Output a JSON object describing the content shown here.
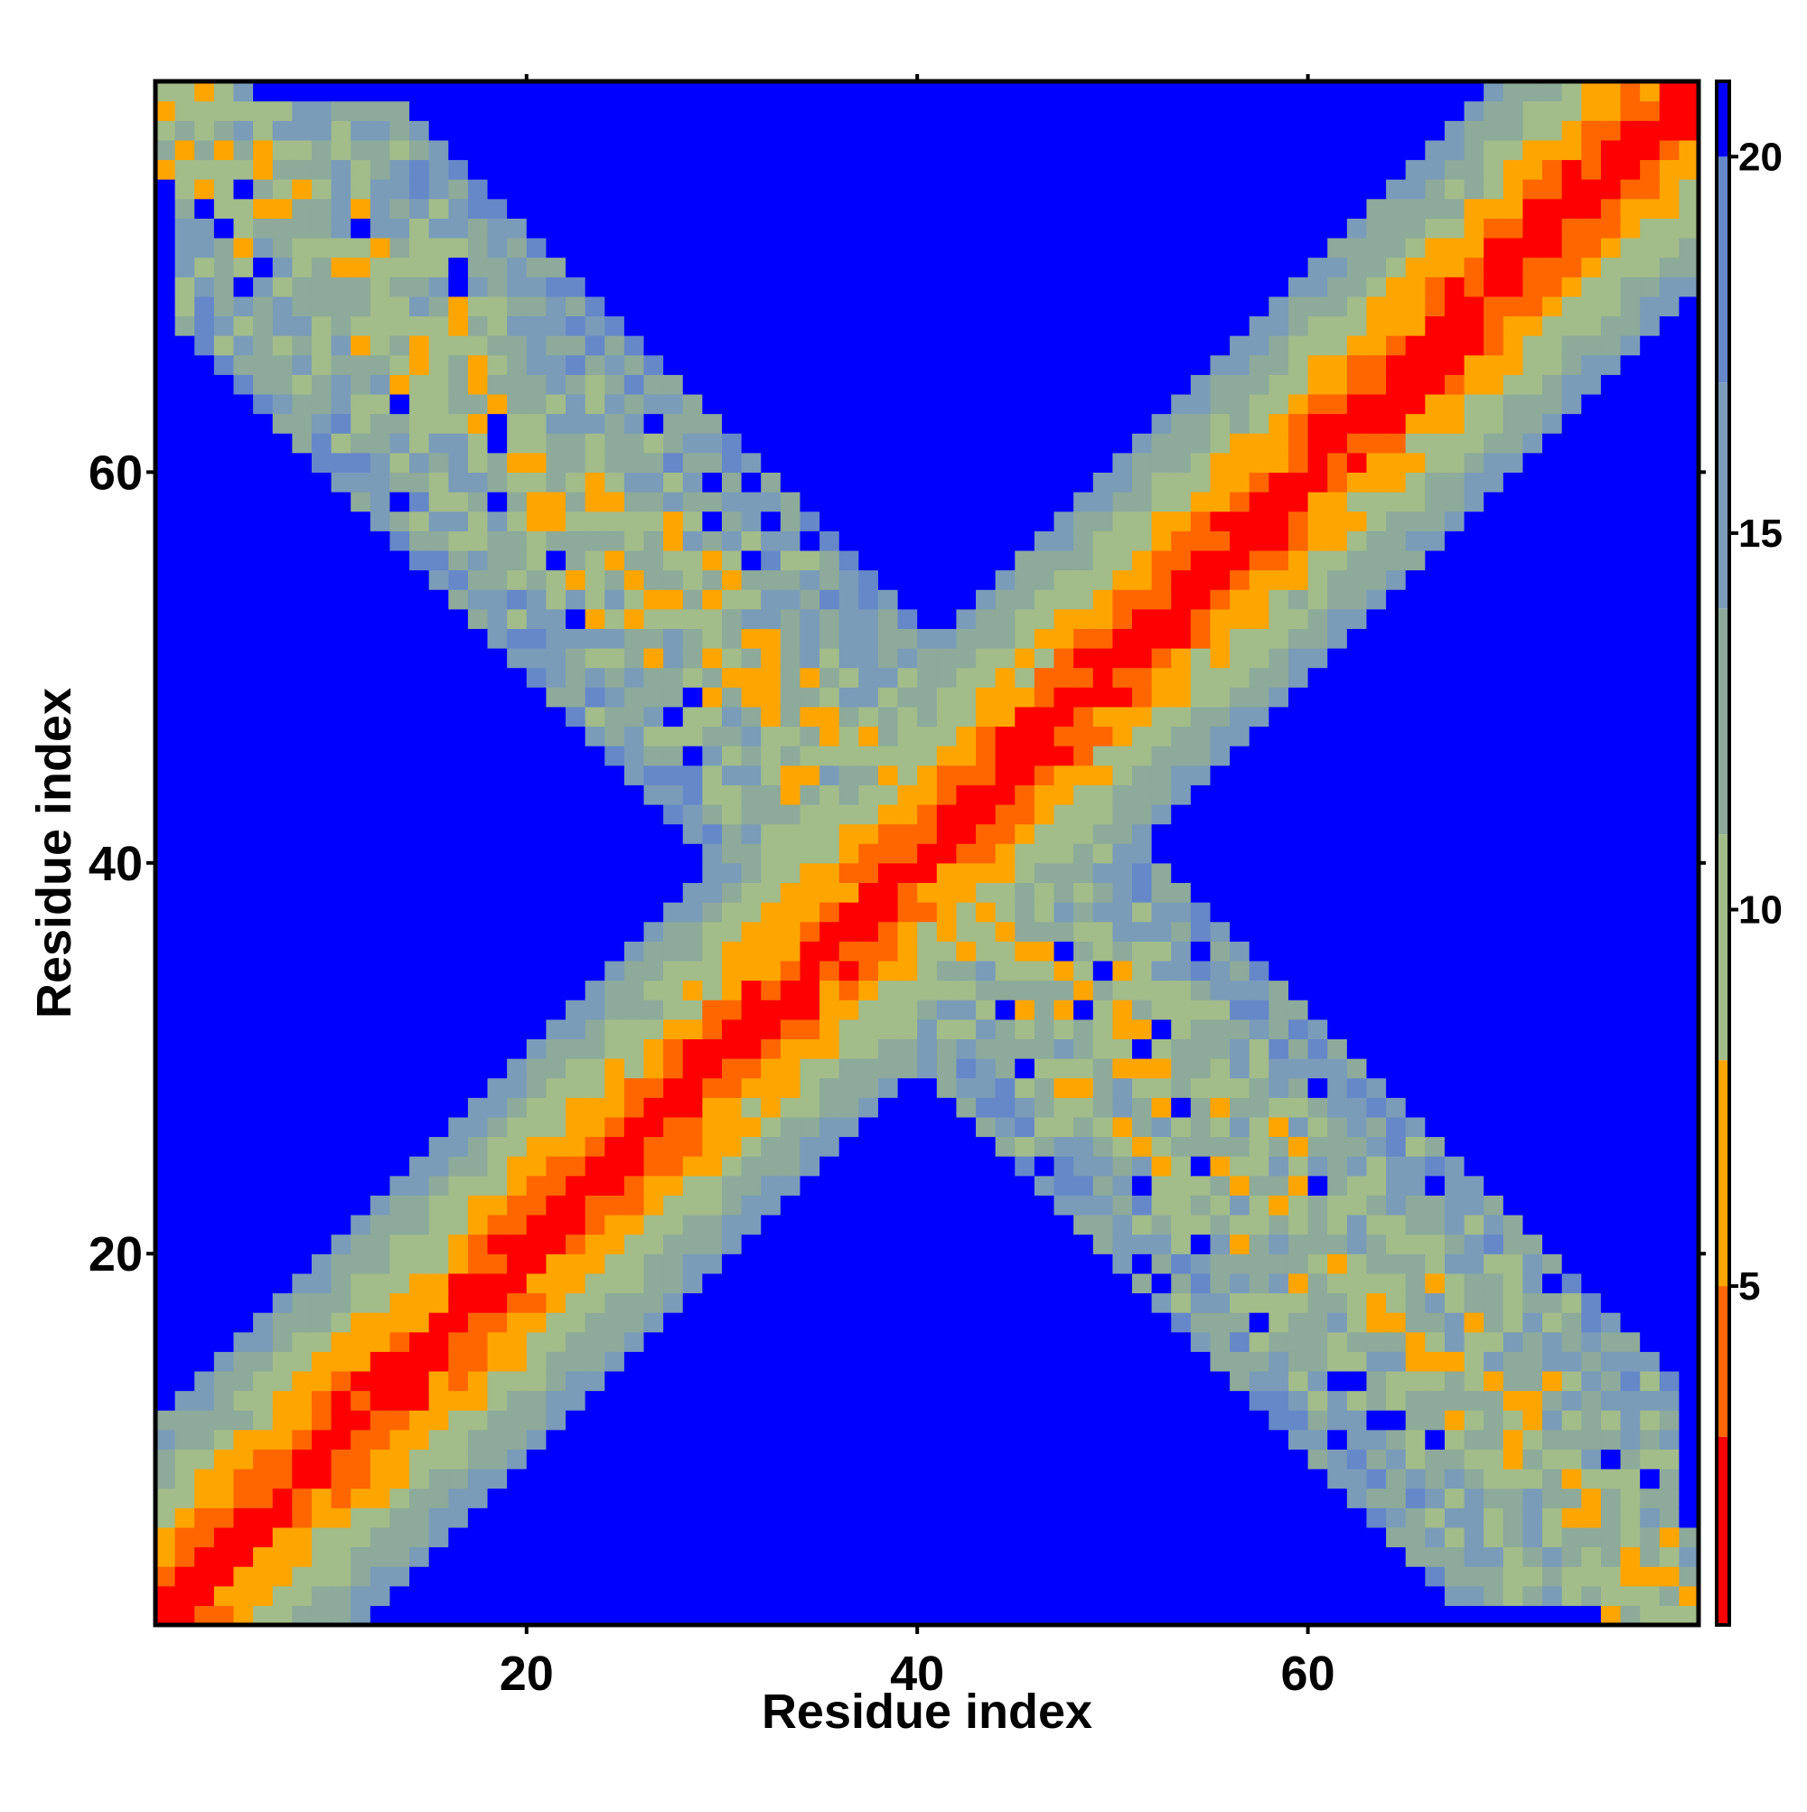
{
  "chart_data": {
    "type": "heatmap",
    "title": "",
    "xlabel": "Residue index",
    "ylabel": "Residue index",
    "n_residues": 79,
    "xlim": [
      1,
      80
    ],
    "ylim": [
      1,
      80
    ],
    "xticks": [
      20,
      40,
      60
    ],
    "yticks": [
      20,
      40,
      60
    ],
    "xtick_labels": [
      "20",
      "40",
      "60"
    ],
    "ytick_labels": [
      "20",
      "40",
      "60"
    ],
    "grid": false,
    "colorbar": {
      "position": "right",
      "range": [
        0.5,
        21
      ],
      "ticks": [
        5,
        10,
        15,
        20
      ],
      "tick_labels": [
        "5",
        "10",
        "15",
        "20"
      ],
      "bands": [
        {
          "from": 0.5,
          "to": 3.0,
          "color": "#ff0000"
        },
        {
          "from": 3.0,
          "to": 5.0,
          "color": "#ff6600"
        },
        {
          "from": 5.0,
          "to": 8.0,
          "color": "#ffa500"
        },
        {
          "from": 8.0,
          "to": 11.0,
          "color": "#a2bc8a"
        },
        {
          "from": 11.0,
          "to": 14.0,
          "color": "#8daa9a"
        },
        {
          "from": 14.0,
          "to": 17.0,
          "color": "#7a9cb8"
        },
        {
          "from": 17.0,
          "to": 20.0,
          "color": "#6688c8"
        },
        {
          "from": 20.0,
          "to": 21.0,
          "color": "#0000ff"
        }
      ]
    },
    "contact_map": {
      "diagonal_band_halfwidth": 10,
      "antidiagonal_band": {
        "halfwidth": 11,
        "span_from": 8,
        "span_to": 79
      },
      "max_value": 21
    }
  }
}
